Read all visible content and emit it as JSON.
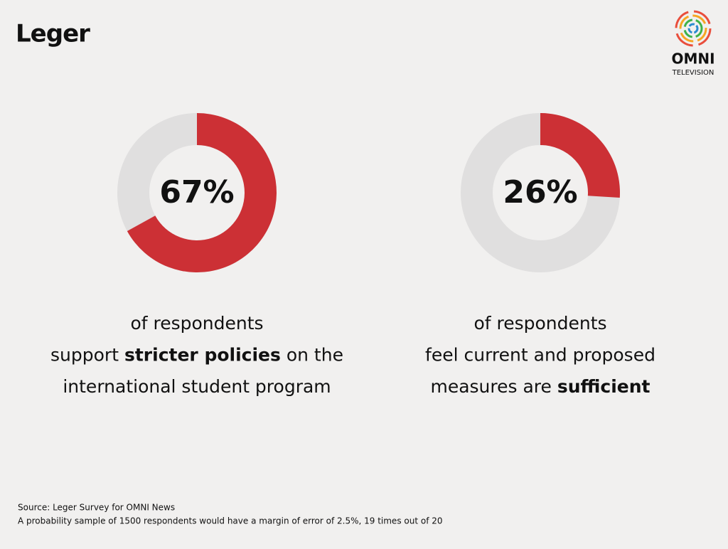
{
  "logos": {
    "left": "Leger",
    "right_name": "OMNI",
    "right_sub": "TELEVISION"
  },
  "chart_data": [
    {
      "type": "donut",
      "values": [
        67
      ],
      "value_labels": [
        "67%"
      ],
      "color": "#cc3035",
      "track_color": "#e0dfdf",
      "caption": [
        [
          {
            "text": "of respondents",
            "bold": false
          }
        ],
        [
          {
            "text": "support ",
            "bold": false
          },
          {
            "text": "stricter policies",
            "bold": true
          },
          {
            "text": " on the",
            "bold": false
          }
        ],
        [
          {
            "text": "international student program",
            "bold": false
          }
        ]
      ]
    },
    {
      "type": "donut",
      "values": [
        26
      ],
      "value_labels": [
        "26%"
      ],
      "color": "#cc3035",
      "track_color": "#e0dfdf",
      "caption": [
        [
          {
            "text": "of respondents",
            "bold": false
          }
        ],
        [
          {
            "text": "feel current and proposed",
            "bold": false
          }
        ],
        [
          {
            "text": "measures are ",
            "bold": false
          },
          {
            "text": "sufficient",
            "bold": true
          }
        ]
      ]
    }
  ],
  "footer": {
    "source": "Source: Leger Survey for OMNI News",
    "note": "A probability sample of 1500 respondents would have a margin of error of 2.5%, 19 times out of 20"
  }
}
